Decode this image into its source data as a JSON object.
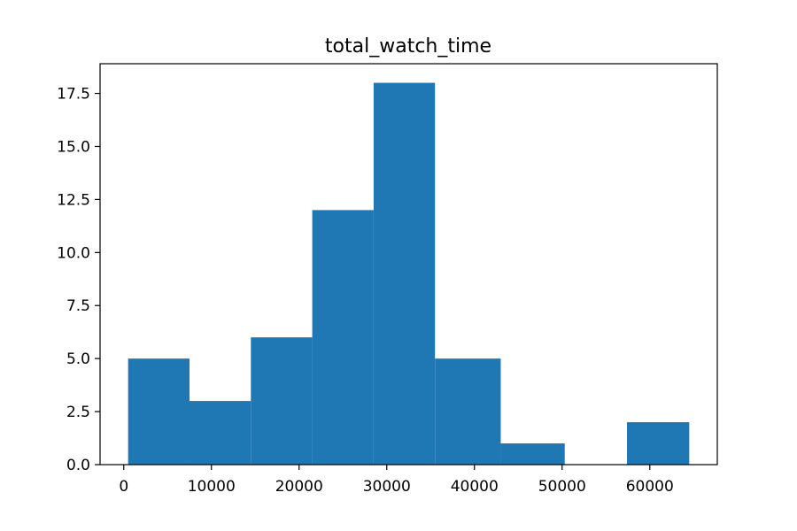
{
  "chart_data": {
    "type": "bar",
    "title": "total_watch_time",
    "xlabel": "",
    "ylabel": "",
    "bin_edges": [
      500,
      7500,
      14500,
      21500,
      28500,
      35500,
      43000,
      50300,
      57400,
      64500
    ],
    "values": [
      5,
      3,
      6,
      12,
      18,
      5,
      1,
      0,
      2
    ],
    "xlim": [
      -2700,
      67700
    ],
    "ylim": [
      0,
      18.9
    ],
    "x_ticks": [
      0,
      10000,
      20000,
      30000,
      40000,
      50000,
      60000
    ],
    "y_ticks": [
      0.0,
      2.5,
      5.0,
      7.5,
      10.0,
      12.5,
      15.0,
      17.5
    ],
    "x_tick_labels": [
      "0",
      "10000",
      "20000",
      "30000",
      "40000",
      "50000",
      "60000"
    ],
    "y_tick_labels": [
      "0.0",
      "2.5",
      "5.0",
      "7.5",
      "10.0",
      "12.5",
      "15.0",
      "17.5"
    ],
    "bar_color": "#1f77b4",
    "grid": false,
    "legend": "none"
  }
}
